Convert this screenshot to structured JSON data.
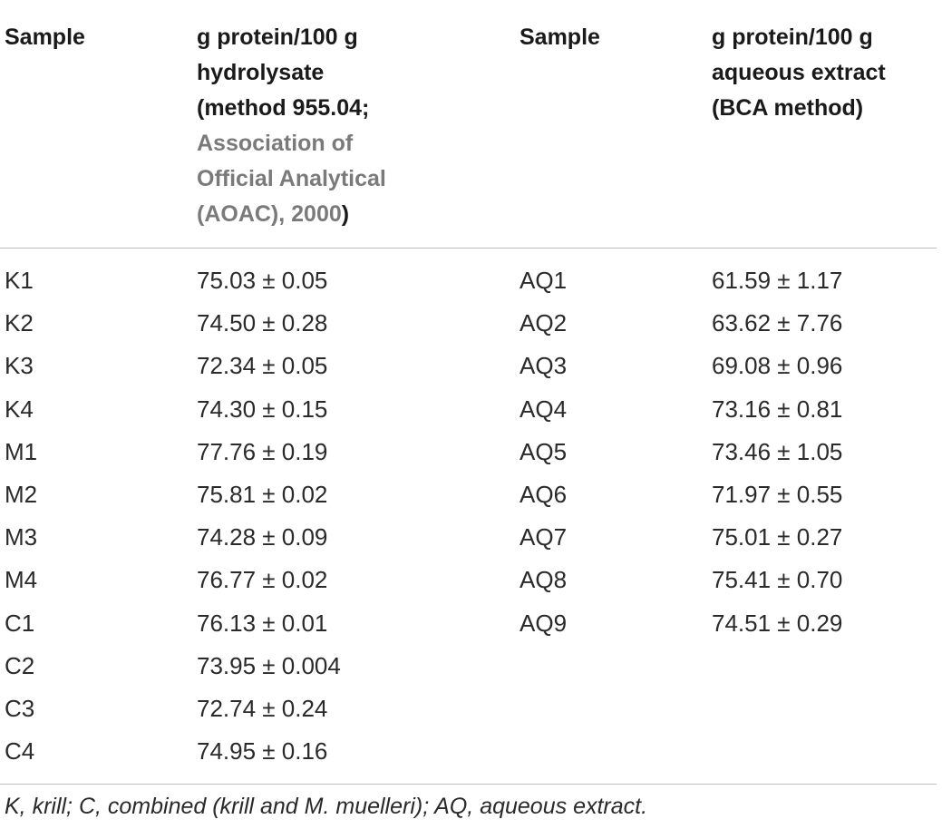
{
  "table": {
    "headers": {
      "col1": "Sample",
      "col2_line1": "g protein/100 g",
      "col2_line2": "hydrolysate",
      "col2_line3": "(method 955.04;",
      "col2_ref_line1": "Association of",
      "col2_ref_line2": "Official Analytical",
      "col2_ref_line3": "(AOAC), 2000",
      "col2_close": ")",
      "col3": "Sample",
      "col4_line1": "g protein/100 g",
      "col4_line2": "aqueous extract",
      "col4_line3": "(BCA method)"
    },
    "rows": [
      {
        "s1": "K1",
        "v1": "75.03 ± 0.05",
        "s2": "AQ1",
        "v2": "61.59 ± 1.17"
      },
      {
        "s1": "K2",
        "v1": "74.50 ± 0.28",
        "s2": "AQ2",
        "v2": "63.62 ± 7.76"
      },
      {
        "s1": "K3",
        "v1": "72.34 ± 0.05",
        "s2": "AQ3",
        "v2": "69.08 ± 0.96"
      },
      {
        "s1": "K4",
        "v1": "74.30 ± 0.15",
        "s2": "AQ4",
        "v2": "73.16 ± 0.81"
      },
      {
        "s1": "M1",
        "v1": "77.76 ± 0.19",
        "s2": "AQ5",
        "v2": "73.46 ± 1.05"
      },
      {
        "s1": "M2",
        "v1": "75.81 ± 0.02",
        "s2": "AQ6",
        "v2": "71.97 ± 0.55"
      },
      {
        "s1": "M3",
        "v1": "74.28 ± 0.09",
        "s2": "AQ7",
        "v2": "75.01 ± 0.27"
      },
      {
        "s1": "M4",
        "v1": "76.77 ± 0.02",
        "s2": "AQ8",
        "v2": "75.41 ± 0.70"
      },
      {
        "s1": "C1",
        "v1": "76.13 ± 0.01",
        "s2": "AQ9",
        "v2": "74.51 ± 0.29"
      },
      {
        "s1": "C2",
        "v1": "73.95 ± 0.004",
        "s2": "",
        "v2": ""
      },
      {
        "s1": "C3",
        "v1": "72.74 ± 0.24",
        "s2": "",
        "v2": ""
      },
      {
        "s1": "C4",
        "v1": "74.95 ± 0.16",
        "s2": "",
        "v2": ""
      }
    ]
  },
  "footnote": "K, krill; C, combined (krill and M. muelleri); AQ, aqueous extract.",
  "colors": {
    "text": "#2a2a2a",
    "reference_link": "#7a7a7a",
    "rule": "#bdbdbd"
  }
}
